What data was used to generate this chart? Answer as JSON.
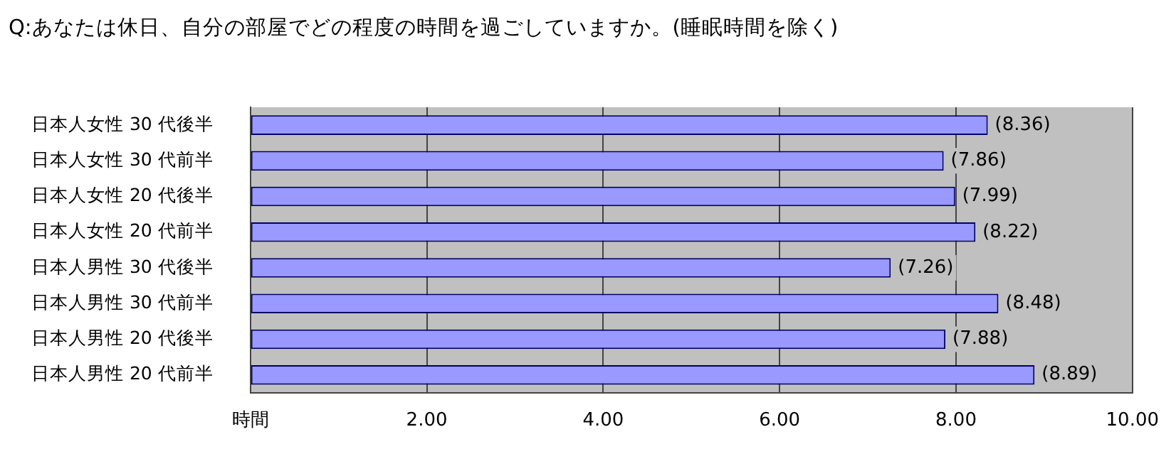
{
  "chart_data": {
    "type": "bar",
    "orientation": "horizontal",
    "title": "Q:あなたは休日、自分の部屋でどの程度の時間を過ごしていますか。(睡眠時間を除く)",
    "categories": [
      "日本人女性 30 代後半",
      "日本人女性 30 代前半",
      "日本人女性 20 代後半",
      "日本人女性 20 代前半",
      "日本人男性 30 代後半",
      "日本人男性 30 代前半",
      "日本人男性 20 代後半",
      "日本人男性 20 代前半"
    ],
    "values": [
      8.36,
      7.86,
      7.99,
      8.22,
      7.26,
      8.48,
      7.88,
      8.89
    ],
    "value_labels": [
      "(8.36)",
      "(7.86)",
      "(7.99)",
      "(8.22)",
      "(7.26)",
      "(8.48)",
      "(7.88)",
      "(8.89)"
    ],
    "color": "#9999ff",
    "xlim": [
      0,
      10
    ],
    "xticks": [
      {
        "value": 0,
        "label": "時間"
      },
      {
        "value": 2,
        "label": "2.00"
      },
      {
        "value": 4,
        "label": "4.00"
      },
      {
        "value": 6,
        "label": "6.00"
      },
      {
        "value": 8,
        "label": "8.00"
      },
      {
        "value": 10,
        "label": "10.00"
      }
    ],
    "grid": "x",
    "legend": false
  }
}
